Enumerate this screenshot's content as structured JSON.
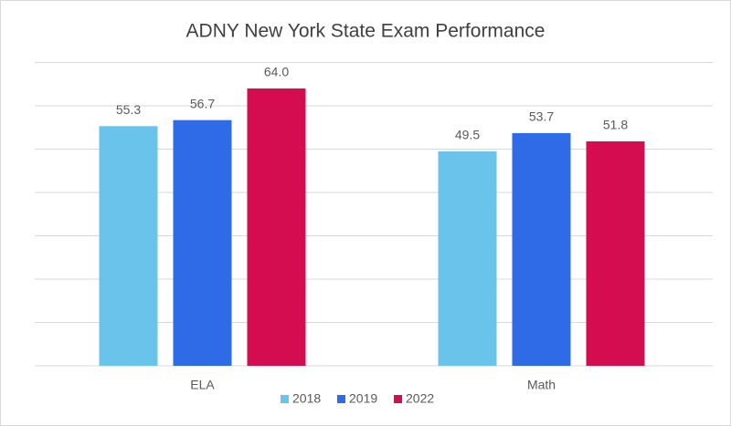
{
  "chart_data": {
    "type": "bar",
    "title": "ADNY New York State Exam Performance",
    "categories": [
      "ELA",
      "Math"
    ],
    "series": [
      {
        "name": "2018",
        "color": "#6ac3ea",
        "values": [
          55.3,
          49.5
        ],
        "value_labels": [
          "55.3",
          "49.5"
        ]
      },
      {
        "name": "2019",
        "color": "#2f6be6",
        "values": [
          56.7,
          53.7
        ],
        "value_labels": [
          "56.7",
          "53.7"
        ]
      },
      {
        "name": "2022",
        "color": "#d40c50",
        "values": [
          64.0,
          51.8
        ],
        "value_labels": [
          "64.0",
          "51.8"
        ]
      }
    ],
    "ylim": [
      0,
      70
    ],
    "yticks": [
      0,
      10,
      20,
      30,
      40,
      50,
      60,
      70
    ],
    "grid": true,
    "legend": "bottom"
  }
}
